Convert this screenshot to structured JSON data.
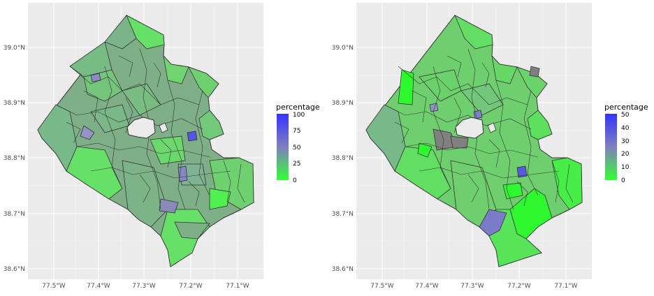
{
  "panels": [
    {
      "id": "left",
      "y_ticks": [
        "39.0°N",
        "38.9°N",
        "38.8°N",
        "38.7°N",
        "38.6°N"
      ],
      "x_ticks": [
        "77.5°W",
        "77.4°W",
        "77.3°W",
        "77.2°W",
        "77.1°W"
      ],
      "legend": {
        "title": "percentage",
        "ticks": [
          "100",
          "75",
          "50",
          "25",
          "0"
        ],
        "gradient": {
          "low": "#33ff33",
          "mid": "#7f7fbf",
          "high": "#3333ff"
        }
      }
    },
    {
      "id": "right",
      "y_ticks": [
        "39.0°N",
        "38.9°N",
        "38.8°N",
        "38.7°N",
        "38.6°N"
      ],
      "x_ticks": [
        "77.5°W",
        "77.4°W",
        "77.3°W",
        "77.2°W",
        "77.1°W"
      ],
      "legend": {
        "title": "percentage",
        "ticks": [
          "50",
          "40",
          "30",
          "20",
          "10",
          "0"
        ],
        "gradient": {
          "low": "#33ff33",
          "mid": "#7f7fbf",
          "high": "#3333ff"
        }
      }
    }
  ],
  "colors": {
    "panel_bg": "#ebebeb",
    "grid_major": "#ffffff",
    "tract_border": "#333333",
    "no_data": "#808080"
  }
}
